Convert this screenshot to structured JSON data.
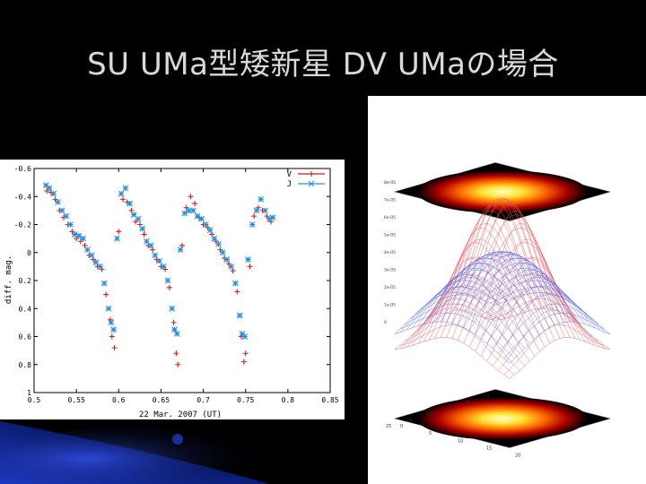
{
  "slide": {
    "title": "SU  UMa型矮新星 DV UMaの場合",
    "colors": {
      "background": "#000000",
      "title_text": "#d9d9d9",
      "accent_blue": "#1f3fd8"
    }
  },
  "chart_data": [
    {
      "type": "scatter",
      "title": "",
      "xlabel": "22 Mar. 2007 (UT)",
      "ylabel": "diff. mag.",
      "xlim": [
        0.5,
        0.85
      ],
      "ylim": [
        -0.6,
        1.0
      ],
      "y_inverted": true,
      "x_ticks": [
        "0.5",
        "0.55",
        "0.6",
        "0.65",
        "0.7",
        "0.75",
        "0.8",
        "0.85"
      ],
      "y_ticks": [
        "-0.6",
        "-0.4",
        "-0.2",
        "0",
        "0.2",
        "0.4",
        "0.6",
        "0.8",
        "1"
      ],
      "legend_position": "top-right",
      "series": [
        {
          "name": "V",
          "marker": "plus",
          "color": "#d11a1a",
          "points": [
            [
              0.515,
              -0.44
            ],
            [
              0.52,
              -0.43
            ],
            [
              0.525,
              -0.38
            ],
            [
              0.53,
              -0.3
            ],
            [
              0.535,
              -0.25
            ],
            [
              0.54,
              -0.2
            ],
            [
              0.545,
              -0.15
            ],
            [
              0.55,
              -0.1
            ],
            [
              0.555,
              -0.08
            ],
            [
              0.56,
              -0.05
            ],
            [
              0.565,
              0.02
            ],
            [
              0.57,
              0.05
            ],
            [
              0.575,
              0.1
            ],
            [
              0.58,
              0.12
            ],
            [
              0.585,
              0.3
            ],
            [
              0.59,
              0.48
            ],
            [
              0.592,
              0.6
            ],
            [
              0.595,
              0.68
            ],
            [
              0.6,
              -0.15
            ],
            [
              0.605,
              -0.38
            ],
            [
              0.61,
              -0.36
            ],
            [
              0.615,
              -0.3
            ],
            [
              0.62,
              -0.22
            ],
            [
              0.625,
              -0.2
            ],
            [
              0.63,
              -0.13
            ],
            [
              0.635,
              -0.05
            ],
            [
              0.64,
              -0.02
            ],
            [
              0.645,
              0.05
            ],
            [
              0.65,
              0.1
            ],
            [
              0.655,
              0.12
            ],
            [
              0.66,
              0.25
            ],
            [
              0.665,
              0.5
            ],
            [
              0.668,
              0.72
            ],
            [
              0.67,
              0.8
            ],
            [
              0.675,
              -0.05
            ],
            [
              0.68,
              -0.32
            ],
            [
              0.685,
              -0.4
            ],
            [
              0.69,
              -0.35
            ],
            [
              0.695,
              -0.25
            ],
            [
              0.7,
              -0.2
            ],
            [
              0.705,
              -0.18
            ],
            [
              0.71,
              -0.13
            ],
            [
              0.715,
              -0.08
            ],
            [
              0.72,
              -0.02
            ],
            [
              0.725,
              0.04
            ],
            [
              0.73,
              0.08
            ],
            [
              0.735,
              0.13
            ],
            [
              0.74,
              0.28
            ],
            [
              0.745,
              0.6
            ],
            [
              0.748,
              0.78
            ],
            [
              0.75,
              0.72
            ],
            [
              0.755,
              0.1
            ],
            [
              0.76,
              -0.26
            ],
            [
              0.765,
              -0.32
            ],
            [
              0.77,
              -0.3
            ],
            [
              0.775,
              -0.26
            ],
            [
              0.78,
              -0.22
            ]
          ]
        },
        {
          "name": "J",
          "marker": "cross",
          "color": "#2a8fd8",
          "points": [
            [
              0.514,
              -0.48
            ],
            [
              0.518,
              -0.46
            ],
            [
              0.523,
              -0.42
            ],
            [
              0.528,
              -0.36
            ],
            [
              0.533,
              -0.3
            ],
            [
              0.538,
              -0.26
            ],
            [
              0.543,
              -0.2
            ],
            [
              0.548,
              -0.13
            ],
            [
              0.553,
              -0.12
            ],
            [
              0.558,
              -0.1
            ],
            [
              0.563,
              -0.02
            ],
            [
              0.568,
              0.02
            ],
            [
              0.573,
              0.07
            ],
            [
              0.578,
              0.1
            ],
            [
              0.583,
              0.22
            ],
            [
              0.588,
              0.4
            ],
            [
              0.591,
              0.5
            ],
            [
              0.594,
              0.55
            ],
            [
              0.598,
              -0.1
            ],
            [
              0.603,
              -0.42
            ],
            [
              0.608,
              -0.46
            ],
            [
              0.613,
              -0.35
            ],
            [
              0.618,
              -0.27
            ],
            [
              0.623,
              -0.24
            ],
            [
              0.628,
              -0.17
            ],
            [
              0.633,
              -0.08
            ],
            [
              0.638,
              -0.05
            ],
            [
              0.643,
              0.02
            ],
            [
              0.648,
              0.06
            ],
            [
              0.653,
              0.1
            ],
            [
              0.658,
              0.2
            ],
            [
              0.663,
              0.4
            ],
            [
              0.666,
              0.55
            ],
            [
              0.669,
              0.58
            ],
            [
              0.673,
              -0.02
            ],
            [
              0.678,
              -0.28
            ],
            [
              0.683,
              -0.3
            ],
            [
              0.688,
              -0.3
            ],
            [
              0.693,
              -0.26
            ],
            [
              0.698,
              -0.24
            ],
            [
              0.703,
              -0.2
            ],
            [
              0.708,
              -0.16
            ],
            [
              0.713,
              -0.1
            ],
            [
              0.718,
              -0.06
            ],
            [
              0.723,
              0.0
            ],
            [
              0.728,
              0.05
            ],
            [
              0.733,
              0.1
            ],
            [
              0.738,
              0.22
            ],
            [
              0.743,
              0.45
            ],
            [
              0.746,
              0.58
            ],
            [
              0.749,
              0.6
            ],
            [
              0.753,
              0.05
            ],
            [
              0.758,
              -0.2
            ],
            [
              0.763,
              -0.3
            ],
            [
              0.768,
              -0.38
            ],
            [
              0.773,
              -0.3
            ],
            [
              0.778,
              -0.24
            ],
            [
              0.782,
              -0.25
            ]
          ]
        }
      ]
    },
    {
      "type": "3d-surface",
      "title": "",
      "z_ticks": [
        "8e-05",
        "7e-05",
        "6e-05",
        "5e-05",
        "4e-05",
        "3e-05",
        "2e-05",
        "1e-05",
        "0"
      ],
      "x_ticks": [
        "0",
        "5",
        "10",
        "15",
        "20"
      ],
      "y_ticks": [
        "0",
        "5",
        "10",
        "15",
        "20",
        "25"
      ],
      "surfaces": [
        {
          "name": "",
          "color": "#e05a66",
          "peak": 5.5e-05,
          "spread": 0.28
        },
        {
          "name": "",
          "color": "#5b6be0",
          "peak": 3.6e-05,
          "spread": 0.4
        }
      ]
    }
  ]
}
